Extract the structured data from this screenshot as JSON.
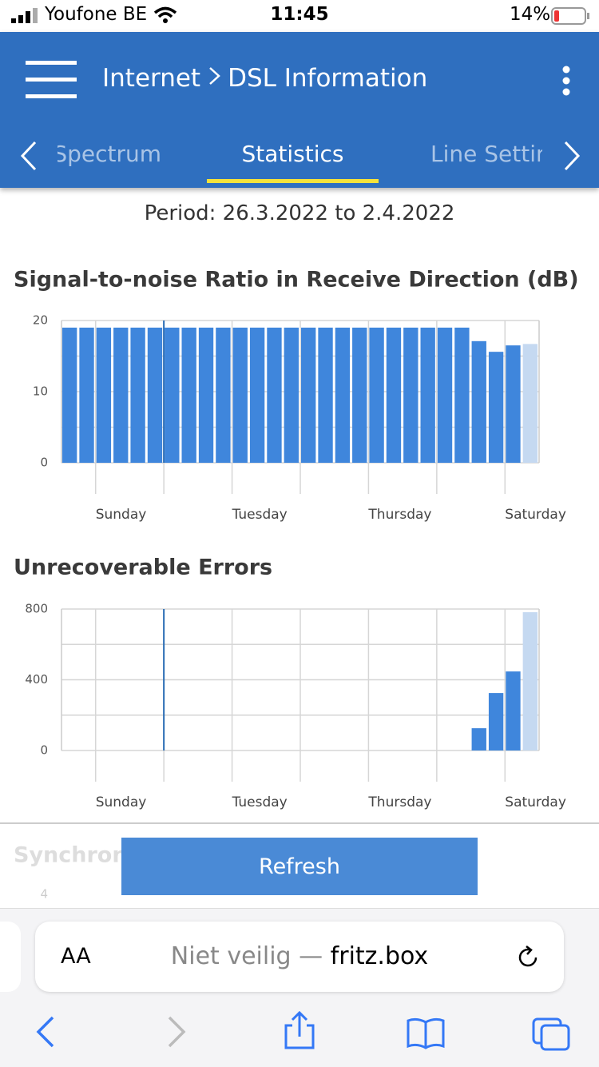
{
  "status_bar": {
    "carrier": "Youfone BE",
    "time": "11:45",
    "battery": "14%"
  },
  "header": {
    "crumb": "Internet",
    "title": "DSL Information"
  },
  "tabs": [
    "Spectrum",
    "Statistics",
    "Line Settin"
  ],
  "period": "Period: 26.3.2022 to 2.4.2022",
  "chart_data": [
    {
      "type": "bar",
      "title": "Signal-to-noise Ratio in Receive Direction (dB)",
      "values": [
        19,
        19,
        19,
        19,
        19,
        19,
        19,
        19,
        19,
        19,
        19,
        19,
        19,
        19,
        19,
        19,
        19,
        19,
        19,
        19,
        19,
        19,
        19,
        19,
        17.1,
        15.6,
        16.5,
        16.7
      ],
      "colors": [
        "#3f86dc",
        "#3f86dc",
        "#3f86dc",
        "#3f86dc",
        "#3f86dc",
        "#3f86dc",
        "#3f86dc",
        "#3f86dc",
        "#3f86dc",
        "#3f86dc",
        "#3f86dc",
        "#3f86dc",
        "#3f86dc",
        "#3f86dc",
        "#3f86dc",
        "#3f86dc",
        "#3f86dc",
        "#3f86dc",
        "#3f86dc",
        "#3f86dc",
        "#3f86dc",
        "#3f86dc",
        "#3f86dc",
        "#3f86dc",
        "#3f86dc",
        "#3f86dc",
        "#3f86dc",
        "#c5d9f1"
      ],
      "ylim": [
        0,
        20
      ],
      "yticks": [
        0,
        10,
        20
      ],
      "ygrid": [
        0,
        5,
        10,
        15,
        20
      ],
      "xlim": [
        0,
        28
      ],
      "xticks": [
        {
          "value": 2,
          "label": "Sunday"
        },
        {
          "value": 10,
          "label": "Tuesday"
        },
        {
          "value": 18,
          "label": "Thursday"
        },
        {
          "value": 26,
          "label": "Saturday"
        }
      ],
      "xgrid": [
        2,
        6,
        10,
        14,
        18,
        22,
        26
      ],
      "marker_x": 6,
      "grid": true
    },
    {
      "type": "bar",
      "title": "Unrecoverable Errors",
      "values": [
        0,
        0,
        0,
        0,
        0,
        0,
        0,
        0,
        0,
        0,
        0,
        0,
        0,
        0,
        0,
        0,
        0,
        0,
        0,
        0,
        0,
        0,
        0,
        0,
        126,
        325,
        447,
        782
      ],
      "colors": [
        "#3f86dc",
        "#3f86dc",
        "#3f86dc",
        "#3f86dc",
        "#3f86dc",
        "#3f86dc",
        "#3f86dc",
        "#3f86dc",
        "#3f86dc",
        "#3f86dc",
        "#3f86dc",
        "#3f86dc",
        "#3f86dc",
        "#3f86dc",
        "#3f86dc",
        "#3f86dc",
        "#3f86dc",
        "#3f86dc",
        "#3f86dc",
        "#3f86dc",
        "#3f86dc",
        "#3f86dc",
        "#3f86dc",
        "#3f86dc",
        "#3f86dc",
        "#3f86dc",
        "#3f86dc",
        "#c5d9f1"
      ],
      "ylim": [
        0,
        800
      ],
      "yticks": [
        0,
        400,
        800
      ],
      "ygrid": [
        0,
        200,
        400,
        600,
        800
      ],
      "xlim": [
        0,
        28
      ],
      "xticks": [
        {
          "value": 2,
          "label": "Sunday"
        },
        {
          "value": 10,
          "label": "Tuesday"
        },
        {
          "value": 18,
          "label": "Thursday"
        },
        {
          "value": 26,
          "label": "Saturday"
        }
      ],
      "xgrid": [
        2,
        6,
        10,
        14,
        18,
        22,
        26
      ],
      "marker_x": 6,
      "grid": true
    }
  ],
  "next_section": {
    "title": "Synchroni",
    "ytick": "4"
  },
  "button": "Refresh",
  "browser": {
    "text_size": "AA",
    "security": "Niet veilig —",
    "domain": "fritz.box"
  }
}
